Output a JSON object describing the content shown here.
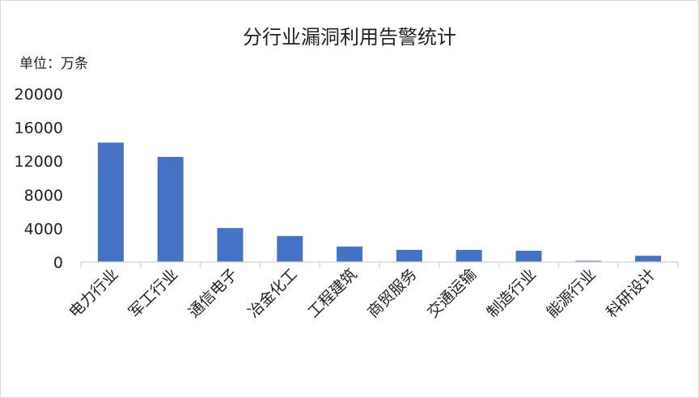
{
  "chart_data": {
    "type": "bar",
    "title": "分行业漏洞利用告警统计",
    "unit_label": "单位：万条",
    "categories": [
      "电力行业",
      "军工行业",
      "通信电子",
      "冶金化工",
      "工程建筑",
      "商贸服务",
      "交通运输",
      "制造行业",
      "能源行业",
      "科研设计"
    ],
    "values": [
      14200,
      12500,
      4050,
      3100,
      1850,
      1450,
      1450,
      1350,
      150,
      750
    ],
    "ylim": [
      0,
      20000
    ],
    "yticks": [
      0,
      4000,
      8000,
      12000,
      16000,
      20000
    ],
    "grid": false,
    "legend": "none",
    "bar_color": "#4472c4"
  }
}
